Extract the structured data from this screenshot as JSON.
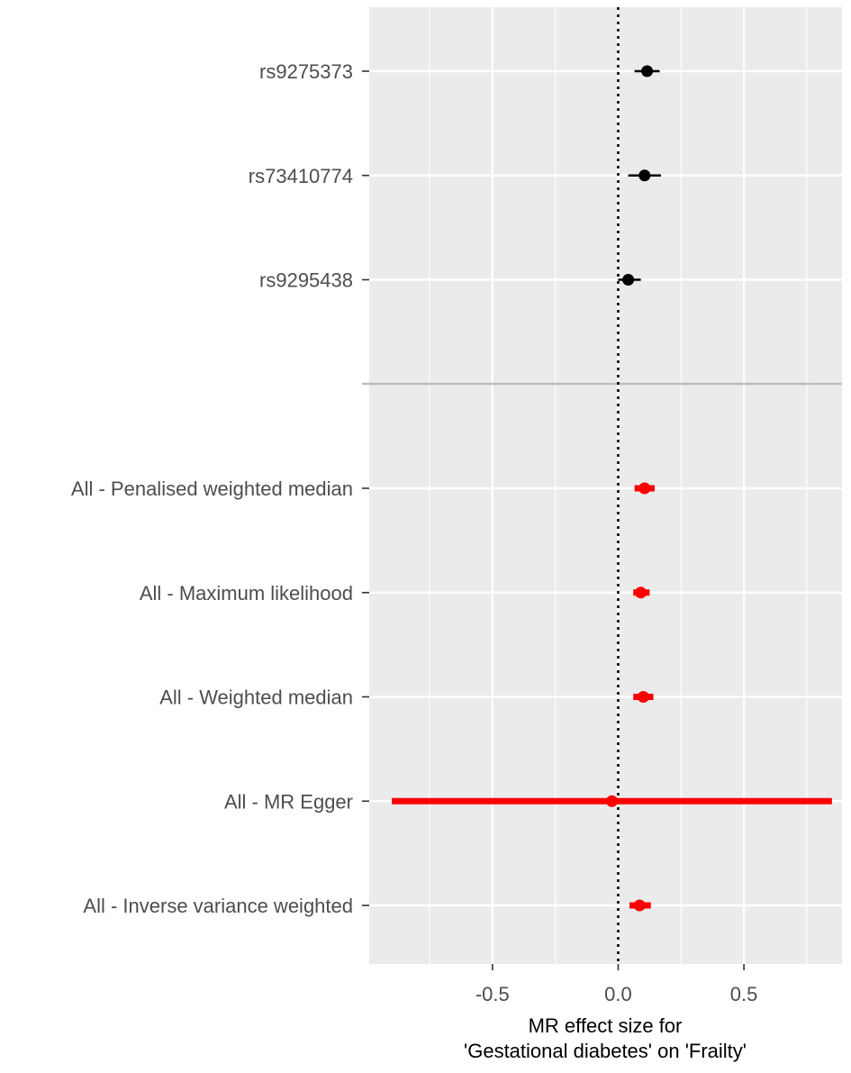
{
  "chart_data": {
    "type": "scatter",
    "subtype": "forest-plot",
    "title": "",
    "xlabel_lines": [
      "MR effect size for",
      "'Gestational diabetes' on 'Frailty'"
    ],
    "ylabel": "",
    "xlim": [
      -0.99,
      0.89
    ],
    "x_ticks": [
      -0.5,
      0.0,
      0.5
    ],
    "x_tick_labels": [
      "-0.5",
      "0.0",
      "0.5"
    ],
    "grid": true,
    "reference_line": {
      "x": 0,
      "style": "dotted",
      "color": "#000000"
    },
    "background_color": "#ebebeb",
    "group_separator_color": "#bebebe",
    "groups": [
      {
        "name": "snps",
        "color": "#000000",
        "rows": [
          {
            "label": "rs9275373",
            "estimate": 0.115,
            "lower": 0.065,
            "upper": 0.165
          },
          {
            "label": "rs73410774",
            "estimate": 0.105,
            "lower": 0.04,
            "upper": 0.17
          },
          {
            "label": "rs9295438",
            "estimate": 0.04,
            "lower": 0.0,
            "upper": 0.09
          }
        ]
      },
      {
        "name": "methods",
        "color": "#ff0000",
        "rows": [
          {
            "label": "All - Penalised weighted median",
            "estimate": 0.105,
            "lower": 0.065,
            "upper": 0.145
          },
          {
            "label": "All - Maximum likelihood",
            "estimate": 0.09,
            "lower": 0.06,
            "upper": 0.125
          },
          {
            "label": "All - Weighted median",
            "estimate": 0.1,
            "lower": 0.06,
            "upper": 0.14
          },
          {
            "label": "All - MR Egger",
            "estimate": -0.025,
            "lower": -0.9,
            "upper": 0.85
          },
          {
            "label": "All - Inverse variance weighted",
            "estimate": 0.085,
            "lower": 0.045,
            "upper": 0.13
          }
        ]
      }
    ]
  }
}
